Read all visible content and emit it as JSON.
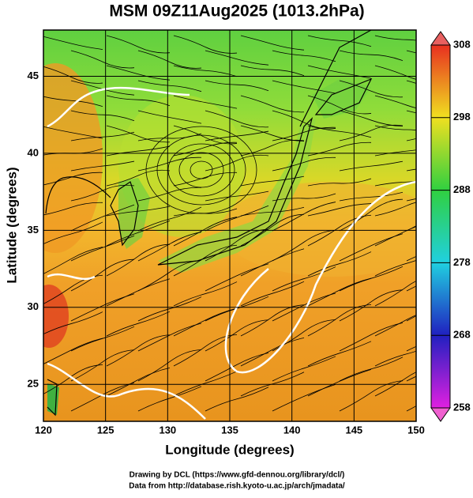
{
  "title": "MSM 09Z11Aug2025 (1013.2hPa)",
  "x_label": "Longitude (degrees)",
  "y_label": "Latitude  (degrees)",
  "xlim": [
    120,
    150
  ],
  "ylim": [
    22.6,
    48
  ],
  "xticks": [
    120,
    125,
    130,
    135,
    140,
    145,
    150
  ],
  "yticks": [
    25,
    30,
    35,
    40,
    45
  ],
  "colorbar": {
    "lim": [
      258,
      308
    ],
    "ticks": [
      258,
      268,
      278,
      288,
      298,
      308
    ]
  },
  "credits": [
    "Drawing by DCL (https://www.gfd-dennou.org/library/dcl/)",
    "Data from http://database.rish.kyoto-u.ac.jp/arch/jmadata/"
  ]
}
